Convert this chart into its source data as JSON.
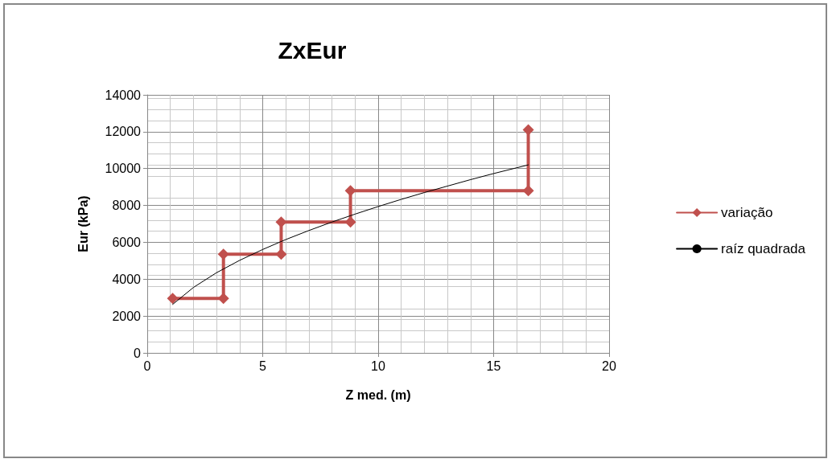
{
  "chart_data": {
    "type": "line",
    "title": "ZxEur",
    "xlabel": "Z med. (m)",
    "ylabel": "Eur (kPa)",
    "xlim": [
      0,
      20
    ],
    "xticks": [
      0,
      5,
      10,
      15,
      20
    ],
    "ylim": [
      0,
      14000
    ],
    "yticks": [
      0,
      2000,
      4000,
      6000,
      8000,
      10000,
      12000,
      14000
    ],
    "grid": true,
    "legend": "right",
    "series": [
      {
        "name": "variação",
        "color": "#c0504d",
        "marker": "diamond",
        "x": [
          1.1,
          3.3,
          3.3,
          5.8,
          5.8,
          8.8,
          8.8,
          16.5,
          16.5
        ],
        "values": [
          2950,
          2950,
          5350,
          5350,
          7100,
          7100,
          8800,
          8800,
          12100
        ]
      },
      {
        "name": "raíz quadrada",
        "color": "#000000",
        "marker": "none",
        "x": [
          1.1,
          2,
          3,
          4,
          5,
          6,
          7,
          8,
          9,
          10,
          11,
          12,
          13,
          14,
          15,
          16.5
        ],
        "values": [
          2630,
          3550,
          4350,
          5020,
          5610,
          6150,
          6640,
          7100,
          7530,
          7940,
          8330,
          8700,
          9050,
          9400,
          9730,
          10200
        ]
      }
    ]
  }
}
